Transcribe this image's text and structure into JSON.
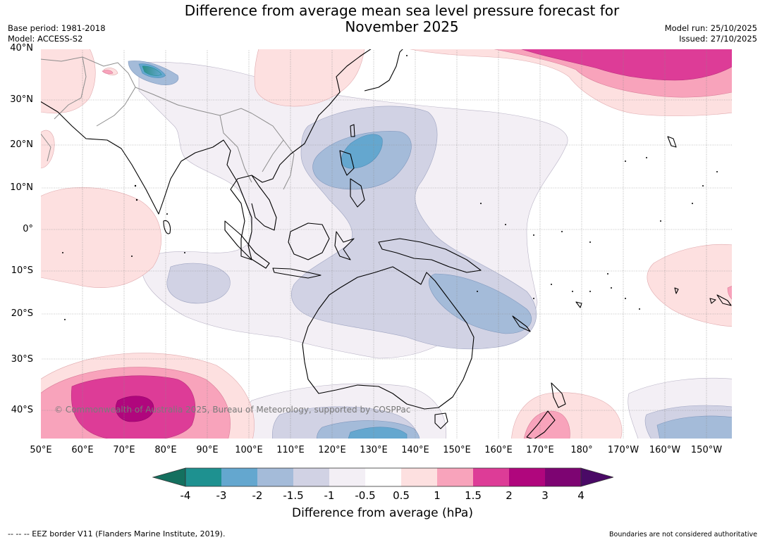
{
  "header": {
    "title_line1": "Difference from average mean sea level pressure forecast for",
    "title_line2": "November 2025",
    "base_period": "Base period: 1981-2018",
    "model": "Model: ACCESS-S2",
    "model_run": "Model run: 25/10/2025",
    "issued": "Issued: 27/10/2025"
  },
  "map": {
    "lat_labels": [
      "40°N",
      "30°N",
      "20°N",
      "10°N",
      "0°",
      "10°S",
      "20°S",
      "30°S",
      "40°S"
    ],
    "lon_labels": [
      "50°E",
      "60°E",
      "70°E",
      "80°E",
      "90°E",
      "100°E",
      "110°E",
      "120°E",
      "130°E",
      "140°E",
      "150°E",
      "160°E",
      "170°E",
      "180°",
      "170°W",
      "160°W",
      "150°W"
    ],
    "watermark": "© Commonwealth of Australia 2025, Bureau of Meteorology, supported by COSPPac"
  },
  "colorbar": {
    "tick_labels": [
      "-4",
      "-3",
      "-2",
      "-1.5",
      "-1",
      "-0.5",
      "0.5",
      "1",
      "1.5",
      "2",
      "3",
      "4"
    ],
    "colors": [
      "#1e9190",
      "#64a7cf",
      "#a4bbd9",
      "#d1d2e4",
      "#f3eff5",
      "#ffffff",
      "#fde0e0",
      "#f8a3bb",
      "#dd3c97",
      "#b0067d",
      "#7d0472"
    ],
    "under_color": "#14705f",
    "over_color": "#4a0a66",
    "title": "Difference from average (hPa)"
  },
  "footer": {
    "eez": "--  --  -- EEZ border V11 (Flanders Marine Institute, 2019).",
    "disclaimer": "Boundaries are not considered authoritative"
  }
}
